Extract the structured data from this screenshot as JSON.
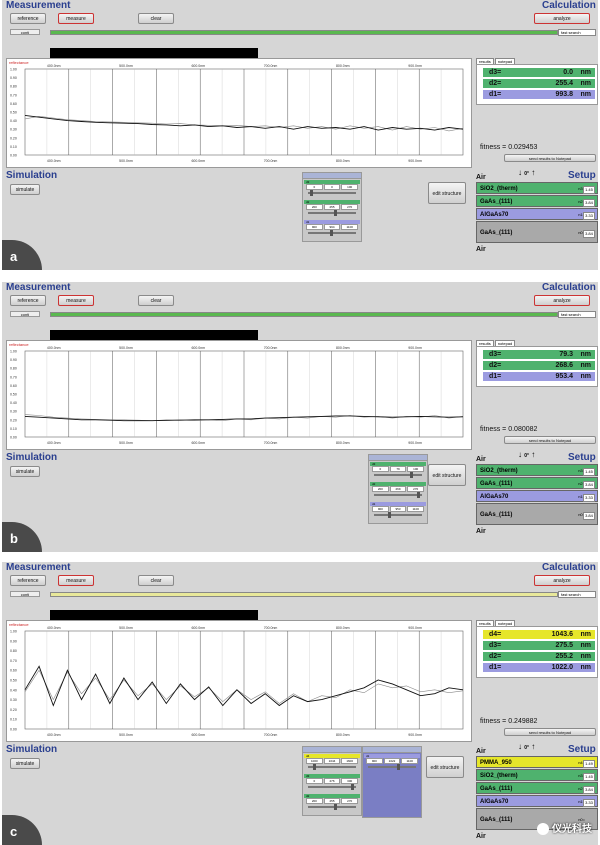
{
  "common": {
    "measurement": "Measurement",
    "calculation": "Calculation",
    "simulation": "Simulation",
    "setup": "Setup",
    "air": "Air",
    "reference": "reference",
    "measure": "measure",
    "clear": "clear",
    "analyze": "analyze",
    "conti": "conti",
    "simulate": "simulate",
    "edit_structure": "edit structure",
    "search_mode": "fast search",
    "reflectance_label": "reflectance",
    "tab_results": "results",
    "tab_notepad": "notepad",
    "send_results": "send results to Notepad",
    "fitness_prefix": "fitness = ",
    "angle": "0°",
    "x_ticks": [
      "400.0nm",
      "500.0nm",
      "600.0nm",
      "700.0nm",
      "800.0nm",
      "900.0nm"
    ],
    "y_ticks": [
      "1.00",
      "0.90",
      "0.80",
      "0.70",
      "0.60",
      "0.50",
      "0.40",
      "0.30",
      "0.20",
      "0.10",
      "0.00"
    ],
    "colors": {
      "title": "#2a3f8f",
      "green": "#4fb26e",
      "purple": "#9b9be0",
      "yellow": "#e6e62a",
      "panel": "#d6d6d6"
    }
  },
  "panels": [
    {
      "label": "a",
      "progress_color": "#5ab84f",
      "results": [
        {
          "name": "d3=",
          "value": "0.0",
          "unit": "nm",
          "color": "#4fb26e"
        },
        {
          "name": "d2=",
          "value": "255.4",
          "unit": "nm",
          "color": "#4fb26e"
        },
        {
          "name": "d1=",
          "value": "993.8",
          "unit": "nm",
          "color": "#9b9be0"
        }
      ],
      "fitness": "0.029453",
      "layers": [
        {
          "name": "SiO2_(therm)",
          "n": "n3=",
          "nval": "1.45",
          "color": "#4fb26e"
        },
        {
          "name": "GaAs_(111)",
          "n": "n2=",
          "nval": "3.84",
          "color": "#4fb26e"
        },
        {
          "name": "AlGaAs70",
          "n": "n1=",
          "nval": "3.33",
          "color": "#9b9be0"
        },
        {
          "name": "GaAs_(111)",
          "n": "n0=",
          "nval": "3.84",
          "color": "#a9a9a9"
        }
      ],
      "controls": [
        {
          "label": "d3",
          "v": [
            "0",
            "0",
            "100"
          ],
          "color": "#4fb26e",
          "knob": 0.05
        },
        {
          "label": "d2",
          "v": [
            "200",
            "255",
            "270"
          ],
          "color": "#4fb26e",
          "knob": 0.55
        },
        {
          "label": "d1",
          "v": [
            "900",
            "994",
            "1100"
          ],
          "color": "#9b9be0",
          "knob": 0.45
        }
      ],
      "curves": {
        "measured": [
          0.42,
          0.45,
          0.43,
          0.41,
          0.4,
          0.39,
          0.385,
          0.38,
          0.375,
          0.37,
          0.36,
          0.365,
          0.35,
          0.345,
          0.34,
          0.345,
          0.33,
          0.34,
          0.32,
          0.34,
          0.31,
          0.33,
          0.3,
          0.34,
          0.31,
          0.33,
          0.29,
          0.33,
          0.3,
          0.32,
          0.28,
          0.31
        ],
        "simulated": [
          0.46,
          0.44,
          0.42,
          0.4,
          0.39,
          0.38,
          0.375,
          0.37,
          0.365,
          0.355,
          0.35,
          0.34,
          0.35,
          0.33,
          0.34,
          0.32,
          0.33,
          0.31,
          0.33,
          0.3,
          0.33,
          0.31,
          0.32,
          0.3,
          0.33,
          0.29,
          0.32,
          0.3,
          0.31,
          0.29,
          0.32,
          0.3
        ]
      }
    },
    {
      "label": "b",
      "progress_color": "#5ab84f",
      "results": [
        {
          "name": "d3=",
          "value": "79.3",
          "unit": "nm",
          "color": "#4fb26e"
        },
        {
          "name": "d2=",
          "value": "268.6",
          "unit": "nm",
          "color": "#4fb26e"
        },
        {
          "name": "d1=",
          "value": "953.4",
          "unit": "nm",
          "color": "#9b9be0"
        }
      ],
      "fitness": "0.080082",
      "layers": [
        {
          "name": "SiO2_(therm)",
          "n": "n3=",
          "nval": "1.45",
          "color": "#4fb26e"
        },
        {
          "name": "GaAs_(111)",
          "n": "n2=",
          "nval": "3.84",
          "color": "#4fb26e"
        },
        {
          "name": "AlGaAs70",
          "n": "n1=",
          "nval": "3.33",
          "color": "#9b9be0"
        },
        {
          "name": "GaAs_(111)",
          "n": "n0=",
          "nval": "3.84",
          "color": "#a9a9a9"
        }
      ],
      "controls": [
        {
          "label": "d3",
          "v": [
            "0",
            "79",
            "100"
          ],
          "color": "#4fb26e",
          "knob": 0.75
        },
        {
          "label": "d2",
          "v": [
            "200",
            "269",
            "270"
          ],
          "color": "#4fb26e",
          "knob": 0.9
        },
        {
          "label": "d1",
          "v": [
            "900",
            "953",
            "1100"
          ],
          "color": "#9b9be0",
          "knob": 0.3
        }
      ],
      "curves": {
        "measured": [
          0.26,
          0.25,
          0.23,
          0.22,
          0.21,
          0.205,
          0.2,
          0.2,
          0.195,
          0.19,
          0.19,
          0.2,
          0.19,
          0.2,
          0.19,
          0.21,
          0.2,
          0.22,
          0.21,
          0.23,
          0.22,
          0.24,
          0.23,
          0.25,
          0.23,
          0.24,
          0.22,
          0.24,
          0.23,
          0.25,
          0.22,
          0.24
        ],
        "simulated": [
          0.24,
          0.23,
          0.22,
          0.21,
          0.2,
          0.2,
          0.195,
          0.19,
          0.19,
          0.19,
          0.195,
          0.195,
          0.2,
          0.2,
          0.205,
          0.21,
          0.21,
          0.22,
          0.225,
          0.23,
          0.235,
          0.24,
          0.245,
          0.245,
          0.24,
          0.235,
          0.23,
          0.235,
          0.24,
          0.235,
          0.23,
          0.235
        ]
      }
    },
    {
      "label": "c",
      "progress_color": "#e8e89a",
      "results": [
        {
          "name": "d4=",
          "value": "1043.6",
          "unit": "nm",
          "color": "#e6e62a"
        },
        {
          "name": "d3=",
          "value": "275.5",
          "unit": "nm",
          "color": "#4fb26e"
        },
        {
          "name": "d2=",
          "value": "255.2",
          "unit": "nm",
          "color": "#4fb26e"
        },
        {
          "name": "d1=",
          "value": "1022.0",
          "unit": "nm",
          "color": "#9b9be0"
        }
      ],
      "fitness": "0.249882",
      "layers": [
        {
          "name": "PMMA_950",
          "n": "n4=",
          "nval": "1.49",
          "color": "#e6e62a"
        },
        {
          "name": "SiO2_(therm)",
          "n": "n3=",
          "nval": "1.45",
          "color": "#4fb26e"
        },
        {
          "name": "GaAs_(111)",
          "n": "n2=",
          "nval": "3.84",
          "color": "#4fb26e"
        },
        {
          "name": "AlGaAs70",
          "n": "n1=",
          "nval": "3.33",
          "color": "#9b9be0"
        },
        {
          "name": "GaAs_(111)",
          "n": "n0=",
          "nval": "",
          "color": "#a9a9a9"
        }
      ],
      "controls": [
        {
          "label": "d4",
          "v": [
            "1000",
            "1044",
            "1600"
          ],
          "color": "#e6e62a",
          "knob": 0.1
        },
        {
          "label": "d3",
          "v": [
            "0",
            "276",
            "300"
          ],
          "color": "#4fb26e",
          "knob": 0.9
        },
        {
          "label": "d2",
          "v": [
            "200",
            "255",
            "270"
          ],
          "color": "#4fb26e",
          "knob": 0.55
        }
      ],
      "controls2": [
        {
          "label": "d1",
          "v": [
            "900",
            "1022",
            "1100"
          ],
          "color": "#9b9be0",
          "knob": 0.6
        }
      ],
      "curves": {
        "measured": [
          0.38,
          0.6,
          0.3,
          0.58,
          0.36,
          0.52,
          0.3,
          0.5,
          0.34,
          0.46,
          0.3,
          0.44,
          0.33,
          0.42,
          0.28,
          0.4,
          0.3,
          0.38,
          0.26,
          0.36,
          0.28,
          0.34,
          0.32,
          0.4,
          0.37,
          0.46,
          0.42,
          0.44,
          0.38,
          0.4,
          0.37,
          0.39
        ],
        "simulated": [
          0.4,
          0.64,
          0.24,
          0.6,
          0.3,
          0.56,
          0.26,
          0.52,
          0.3,
          0.48,
          0.26,
          0.46,
          0.3,
          0.43,
          0.24,
          0.4,
          0.26,
          0.36,
          0.24,
          0.34,
          0.28,
          0.3,
          0.34,
          0.38,
          0.42,
          0.5,
          0.46,
          0.4,
          0.34,
          0.36,
          0.42,
          0.4
        ]
      }
    }
  ],
  "watermark": "仪光科技"
}
